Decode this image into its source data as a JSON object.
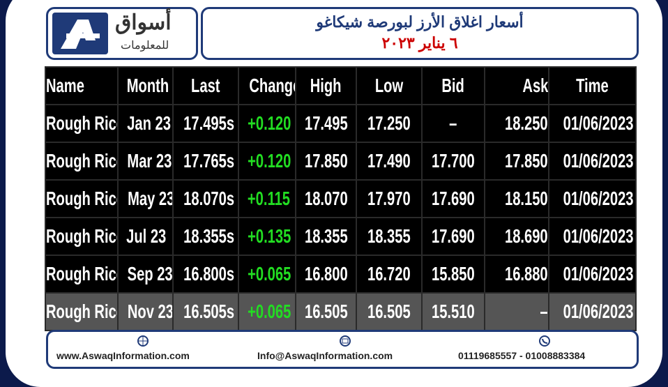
{
  "header": {
    "logo_main": "أسواق",
    "logo_sub": "للمعلومات",
    "title": "أسعار اغلاق الأرز لبورصة شيكاغو",
    "date": "٦ يناير ٢٠٢٣"
  },
  "table": {
    "columns": [
      "Name",
      "Month",
      "Last",
      "Change",
      "High",
      "Low",
      "Bid",
      "Ask",
      "Time"
    ],
    "rows": [
      [
        "Rough Rice",
        "Jan 23",
        "17.495s",
        "+0.120",
        "17.495",
        "17.250",
        "–",
        "18.250",
        "01/06/2023"
      ],
      [
        "Rough Rice",
        "Mar 23",
        "17.765s",
        "+0.120",
        "17.850",
        "17.490",
        "17.700",
        "17.850",
        "01/06/2023"
      ],
      [
        "Rough Rice",
        "May 23",
        "18.070s",
        "+0.115",
        "18.070",
        "17.970",
        "17.690",
        "18.150",
        "01/06/2023"
      ],
      [
        "Rough Rice",
        "Jul 23",
        "18.355s",
        "+0.135",
        "18.355",
        "18.355",
        "17.690",
        "18.690",
        "01/06/2023"
      ],
      [
        "Rough Rice",
        "Sep 23",
        "16.800s",
        "+0.065",
        "16.800",
        "16.720",
        "15.850",
        "16.880",
        "01/06/2023"
      ],
      [
        "Rough Rice",
        "Nov 23",
        "16.505s",
        "+0.065",
        "16.505",
        "16.505",
        "15.510",
        "–",
        "01/06/2023"
      ]
    ]
  },
  "footer": {
    "website": "www.AswaqInformation.com",
    "email": "Info@AswaqInformation.com",
    "phone": "01119685557 - 01008883384"
  }
}
